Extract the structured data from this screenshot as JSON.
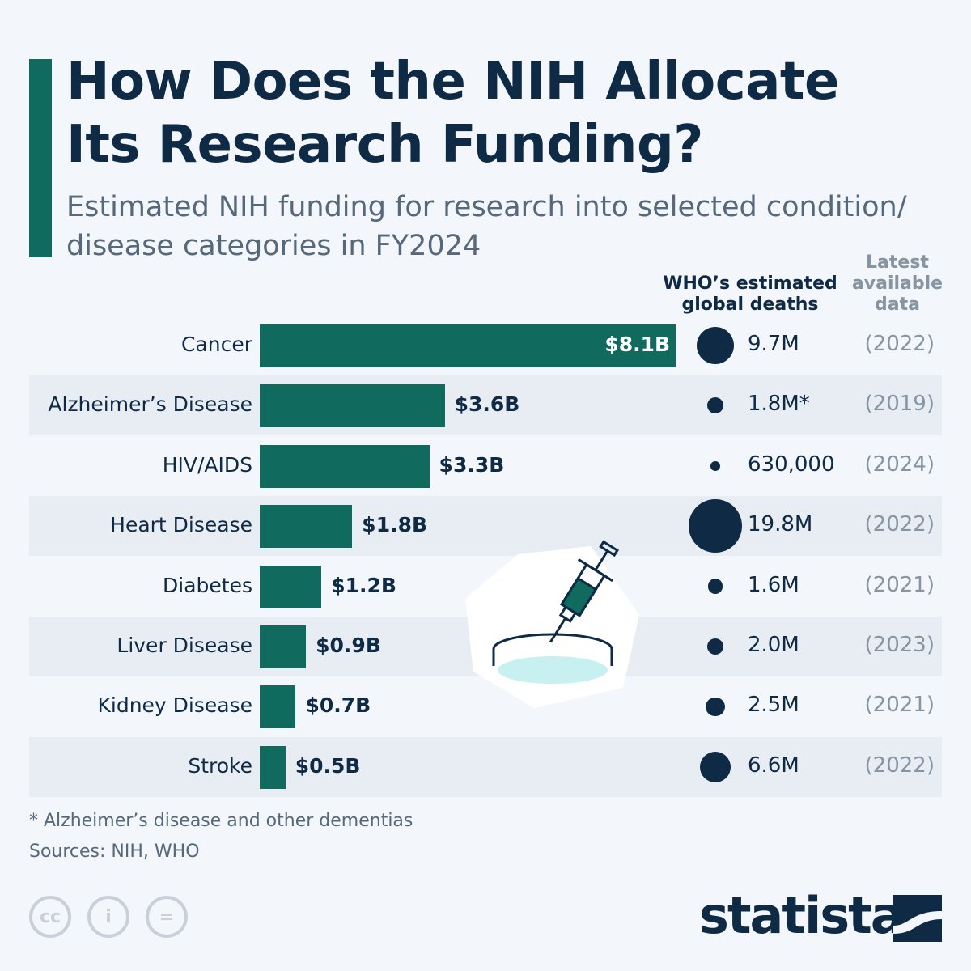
{
  "title_line1": "How Does the NIH Allocate",
  "title_line2": "Its Research Funding?",
  "subtitle": "Estimated NIH funding for research into selected condition/ disease categories in FY2024",
  "col_deaths": "WHO’s estimated global deaths",
  "col_year": "Latest available data",
  "chart_data": {
    "type": "bar",
    "orientation": "horizontal",
    "categories": [
      "Cancer",
      "Alzheimer’s Disease",
      "HIV/AIDS",
      "Heart Disease",
      "Diabetes",
      "Liver Disease",
      "Kidney Disease",
      "Stroke"
    ],
    "values": [
      8.1,
      3.6,
      3.3,
      1.8,
      1.2,
      0.9,
      0.7,
      0.5
    ],
    "value_labels": [
      "$8.1B",
      "$3.6B",
      "$3.3B",
      "$1.8B",
      "$1.2B",
      "$0.9B",
      "$0.7B",
      "$0.5B"
    ],
    "unit": "USD billions",
    "bar_color": "#116a5e",
    "deaths": [
      9.7,
      1.8,
      0.63,
      19.8,
      1.6,
      2.0,
      2.5,
      6.6
    ],
    "deaths_labels": [
      "9.7M",
      "1.8M*",
      "630,000",
      "19.8M",
      "1.6M",
      "2.0M",
      "2.5M",
      "6.6M"
    ],
    "years": [
      "(2022)",
      "(2019)",
      "(2024)",
      "(2022)",
      "(2021)",
      "(2023)",
      "(2021)",
      "(2022)"
    ],
    "dot_color": "#0f2a45"
  },
  "footnote": "* Alzheimer’s disease and other dementias",
  "sources": "Sources: NIH, WHO",
  "license_icons": [
    "cc-icon",
    "attribution-icon",
    "no-derivatives-icon"
  ],
  "license_glyphs": [
    "cc",
    "i",
    "="
  ],
  "logo": "statista"
}
